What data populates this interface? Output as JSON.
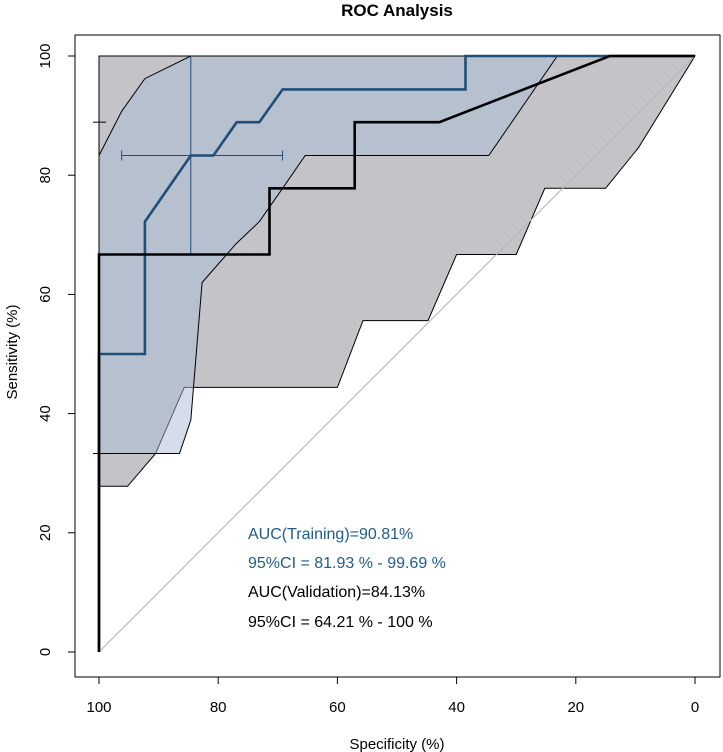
{
  "chart_data": {
    "type": "line",
    "title": "ROC Analysis",
    "xlabel": "Specificity (%)",
    "ylabel": "Sensitivity (%)",
    "xlim": [
      100,
      0
    ],
    "ylim": [
      0,
      100
    ],
    "x_ticks": [
      "100",
      "80",
      "60",
      "40",
      "20",
      "0"
    ],
    "y_ticks": [
      "0",
      "20",
      "40",
      "60",
      "80",
      "100"
    ],
    "colors": {
      "training": "#1F4E79",
      "training_band": "#A9BCD3",
      "validation": "#000000",
      "validation_band": "#C4C4C8",
      "overlap_band": "#8E97A6",
      "diagonal": "#B4B4B4",
      "annotation_training": "#1F5C8C",
      "annotation_validation": "#000000"
    },
    "series": [
      {
        "name": "Training",
        "color": "#1F4E79",
        "points": [
          [
            100,
            0
          ],
          [
            100,
            50
          ],
          [
            92.3,
            50
          ],
          [
            92.3,
            72.2
          ],
          [
            84.6,
            83.3
          ],
          [
            80.8,
            83.3
          ],
          [
            76.9,
            88.9
          ],
          [
            73.1,
            88.9
          ],
          [
            69.2,
            94.4
          ],
          [
            38.5,
            94.4
          ],
          [
            38.5,
            100
          ],
          [
            0,
            100
          ]
        ],
        "ci_band": {
          "upper": [
            [
              100,
              83.3
            ],
            [
              96.2,
              90.7
            ],
            [
              92.3,
              96.2
            ],
            [
              84.6,
              100
            ],
            [
              0,
              100
            ]
          ],
          "lower": [
            [
              100,
              33.3
            ],
            [
              90.4,
              33.3
            ],
            [
              86.5,
              33.3
            ],
            [
              84.6,
              38.9
            ],
            [
              82.7,
              62
            ],
            [
              77,
              68.5
            ],
            [
              73.1,
              72.2
            ],
            [
              69.2,
              77.8
            ],
            [
              65.4,
              83.3
            ],
            [
              34.6,
              83.3
            ],
            [
              23.1,
              100
            ],
            [
              0,
              100
            ]
          ]
        },
        "threshold_point": {
          "specificity": 84.6,
          "sensitivity": 83.3,
          "spec_ci": [
            69.2,
            96.2
          ],
          "sens_ci": [
            66.7,
            100
          ]
        }
      },
      {
        "name": "Validation",
        "color": "#000000",
        "points": [
          [
            100,
            0
          ],
          [
            100,
            66.7
          ],
          [
            71.4,
            66.7
          ],
          [
            71.4,
            77.8
          ],
          [
            57.1,
            77.8
          ],
          [
            57.1,
            88.9
          ],
          [
            42.9,
            88.9
          ],
          [
            14.3,
            100
          ],
          [
            0,
            100
          ]
        ],
        "ci_band": {
          "upper": [
            [
              100,
              100
            ],
            [
              0,
              100
            ]
          ],
          "lower": [
            [
              100,
              27.8
            ],
            [
              95.2,
              27.8
            ],
            [
              90.5,
              33.3
            ],
            [
              85.7,
              44.4
            ],
            [
              60,
              44.4
            ],
            [
              55.7,
              55.6
            ],
            [
              44.8,
              55.6
            ],
            [
              40,
              66.7
            ],
            [
              30,
              66.7
            ],
            [
              25.2,
              77.8
            ],
            [
              15,
              77.8
            ],
            [
              9.5,
              84.6
            ],
            [
              0,
              100
            ]
          ]
        },
        "sens_ci_at_threshold": [
          33.3,
          88.9
        ]
      }
    ],
    "reference_line": [
      [
        100,
        0
      ],
      [
        0,
        100
      ]
    ],
    "annotations": [
      {
        "text": "AUC(Training)=90.81%",
        "group": "training"
      },
      {
        "text": "95%CI = 81.93 % - 99.69 %",
        "group": "training"
      },
      {
        "text": "AUC(Validation)=84.13%",
        "group": "validation"
      },
      {
        "text": "95%CI = 64.21 % - 100 %",
        "group": "validation"
      }
    ]
  }
}
